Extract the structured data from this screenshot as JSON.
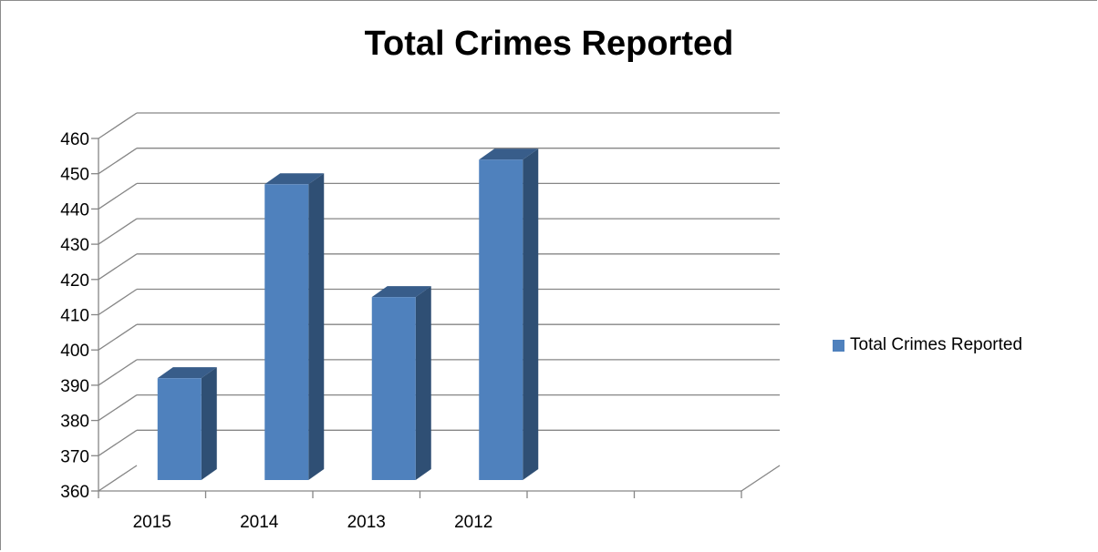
{
  "chart_data": {
    "type": "bar",
    "title": "Total Crimes Reported",
    "categories": [
      "2015",
      "2014",
      "2013",
      "2012",
      "",
      ""
    ],
    "series": [
      {
        "name": "Total Crimes Reported",
        "values": [
          392,
          447,
          415,
          454,
          null,
          null
        ]
      }
    ],
    "yticks": [
      "360",
      "370",
      "380",
      "390",
      "400",
      "410",
      "420",
      "430",
      "440",
      "450",
      "460"
    ],
    "ylim": [
      360,
      460
    ],
    "grid": true,
    "legend_position": "right",
    "style": "3d-column",
    "colors": {
      "front": "#4f81bd",
      "side": "#2f4f74",
      "top": "#385d8a",
      "grid": "#868686"
    }
  }
}
